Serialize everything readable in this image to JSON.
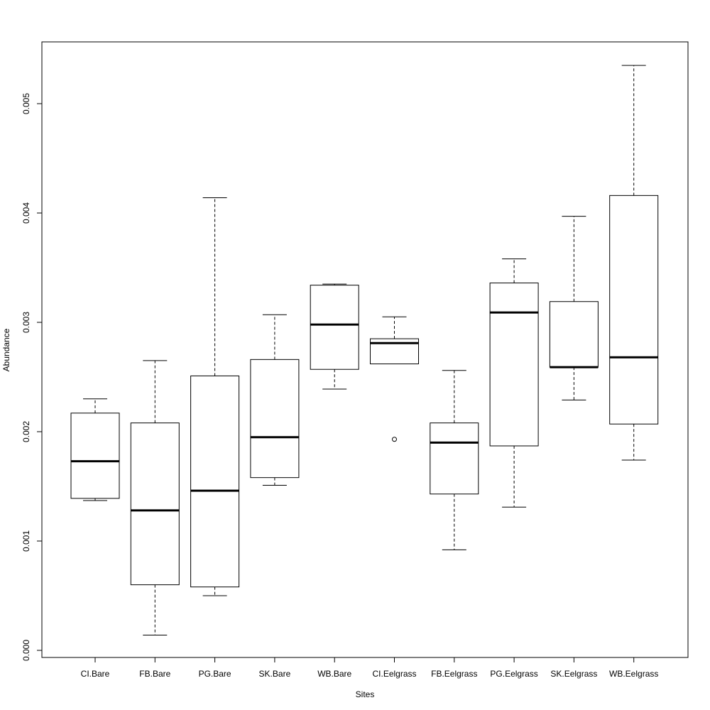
{
  "chart_data": {
    "type": "box",
    "title": "",
    "xlabel": "Sites",
    "ylabel": "Abundance",
    "ylim": [
      -0.0001,
      0.0056
    ],
    "yticks": [
      0.0,
      0.001,
      0.002,
      0.003,
      0.004,
      0.005
    ],
    "ytick_labels": [
      "0.000",
      "0.001",
      "0.002",
      "0.003",
      "0.004",
      "0.005"
    ],
    "grid": false,
    "categories": [
      "CI.Bare",
      "FB.Bare",
      "PG.Bare",
      "SK.Bare",
      "WB.Bare",
      "CI.Eelgrass",
      "FB.Eelgrass",
      "PG.Eelgrass",
      "SK.Eelgrass",
      "WB.Eelgrass"
    ],
    "boxes": [
      {
        "whisker_low": 0.00137,
        "q1": 0.00139,
        "median": 0.00173,
        "q3": 0.00217,
        "whisker_high": 0.0023,
        "outliers": []
      },
      {
        "whisker_low": 0.00014,
        "q1": 0.0006,
        "median": 0.00128,
        "q3": 0.00208,
        "whisker_high": 0.00265,
        "outliers": []
      },
      {
        "whisker_low": 0.0005,
        "q1": 0.00058,
        "median": 0.00146,
        "q3": 0.00251,
        "whisker_high": 0.00414,
        "outliers": []
      },
      {
        "whisker_low": 0.00151,
        "q1": 0.00158,
        "median": 0.00195,
        "q3": 0.00266,
        "whisker_high": 0.00307,
        "outliers": []
      },
      {
        "whisker_low": 0.00239,
        "q1": 0.00257,
        "median": 0.00298,
        "q3": 0.00334,
        "whisker_high": 0.00335,
        "outliers": []
      },
      {
        "whisker_low": 0.00262,
        "q1": 0.00262,
        "median": 0.00281,
        "q3": 0.00285,
        "whisker_high": 0.00305,
        "outliers": [
          0.00193
        ]
      },
      {
        "whisker_low": 0.00092,
        "q1": 0.00143,
        "median": 0.0019,
        "q3": 0.00208,
        "whisker_high": 0.00256,
        "outliers": []
      },
      {
        "whisker_low": 0.00131,
        "q1": 0.00187,
        "median": 0.00309,
        "q3": 0.00336,
        "whisker_high": 0.00358,
        "outliers": []
      },
      {
        "whisker_low": 0.00229,
        "q1": 0.00259,
        "median": 0.00259,
        "q3": 0.00319,
        "whisker_high": 0.00397,
        "outliers": []
      },
      {
        "whisker_low": 0.00174,
        "q1": 0.00207,
        "median": 0.00268,
        "q3": 0.00416,
        "whisker_high": 0.00535,
        "outliers": []
      }
    ]
  }
}
